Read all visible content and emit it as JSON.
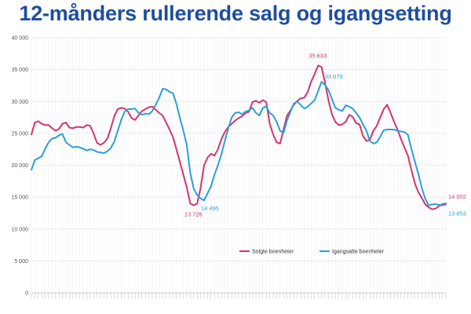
{
  "title": "12-månders rullerende salg og igangsetting",
  "chart_data": {
    "type": "line",
    "title": "12-månders rullerende salg og igangsetting",
    "ylim": [
      0,
      40000
    ],
    "yticks": [
      "0",
      "5 000",
      "10 000",
      "15 000",
      "20 000",
      "25 000",
      "30 000",
      "35 000",
      "40 000"
    ],
    "ytick_values": [
      0,
      5000,
      10000,
      15000,
      20000,
      25000,
      30000,
      35000,
      40000
    ],
    "grid": true,
    "legend_position": "bottom-right",
    "x_count": 121,
    "series": [
      {
        "name": "Solgte boenheter",
        "color": "#d6336c",
        "values": [
          24800,
          26700,
          26900,
          26500,
          26300,
          26300,
          25800,
          25400,
          25700,
          26500,
          26700,
          25900,
          25800,
          26000,
          26000,
          25900,
          26300,
          26200,
          25000,
          23500,
          23200,
          23500,
          24200,
          25800,
          27700,
          28800,
          29000,
          28900,
          28400,
          27400,
          27100,
          27800,
          28500,
          28800,
          29100,
          29200,
          28700,
          28200,
          27800,
          26700,
          25600,
          24400,
          22500,
          20500,
          18500,
          16500,
          14000,
          13726,
          14000,
          16500,
          20000,
          21200,
          21800,
          21500,
          22500,
          24100,
          25200,
          26000,
          26500,
          27000,
          27400,
          27700,
          28200,
          28400,
          29900,
          30100,
          29800,
          30200,
          29900,
          26500,
          24800,
          23600,
          23400,
          25600,
          27800,
          28600,
          29500,
          30100,
          30500,
          30600,
          31500,
          33100,
          34300,
          35633,
          35400,
          33000,
          30200,
          28000,
          26800,
          26300,
          26400,
          26800,
          27900,
          27600,
          26600,
          26400,
          24600,
          23800,
          24000,
          25400,
          26200,
          27500,
          28800,
          29500,
          28200,
          26800,
          25600,
          24100,
          22800,
          21500,
          19300,
          17200,
          15800,
          14900,
          13900,
          13400,
          13100,
          13200,
          13600,
          13900,
          14002
        ]
      },
      {
        "name": "Igangsatte boenheter",
        "color": "#2a9fd6",
        "values": [
          19300,
          20800,
          21100,
          21400,
          22600,
          23600,
          24200,
          24300,
          24700,
          24900,
          23600,
          23200,
          22800,
          22900,
          22800,
          22600,
          22300,
          22500,
          22400,
          22100,
          22000,
          21900,
          22200,
          22700,
          23700,
          25400,
          27100,
          28400,
          28800,
          28800,
          28900,
          28200,
          27900,
          28100,
          28000,
          28500,
          29500,
          30600,
          32000,
          31900,
          31500,
          31300,
          29600,
          27400,
          25400,
          23100,
          18800,
          16300,
          15300,
          14800,
          14495,
          15600,
          16700,
          18500,
          20000,
          21700,
          23800,
          25800,
          27500,
          28200,
          28300,
          28000,
          28400,
          28600,
          29000,
          28200,
          27800,
          29000,
          29200,
          28200,
          27800,
          26800,
          25400,
          25100,
          27000,
          28400,
          29700,
          30000,
          29400,
          28900,
          29200,
          29700,
          30200,
          31600,
          33079,
          32600,
          31800,
          30400,
          29000,
          28700,
          28500,
          29400,
          29200,
          28900,
          28200,
          27500,
          26400,
          25400,
          23800,
          23400,
          23600,
          24500,
          25500,
          25600,
          25600,
          25600,
          25400,
          25300,
          25200,
          24800,
          22600,
          20600,
          18700,
          16500,
          14800,
          13700,
          13853,
          13900,
          13800,
          13700,
          13853
        ]
      }
    ],
    "annotations": [
      {
        "label": "35 633",
        "series": 0
      },
      {
        "label": "33 079",
        "series": 1
      },
      {
        "label": "13 726",
        "series": 0
      },
      {
        "label": "14 495",
        "series": 1
      },
      {
        "label": "14 002",
        "series": 0
      },
      {
        "label": "13 853",
        "series": 1
      }
    ]
  },
  "legend": {
    "items": [
      {
        "label": "Solgte boenheter",
        "color": "#d6336c"
      },
      {
        "label": "Igangsatte boenheter",
        "color": "#2a9fd6"
      }
    ]
  }
}
